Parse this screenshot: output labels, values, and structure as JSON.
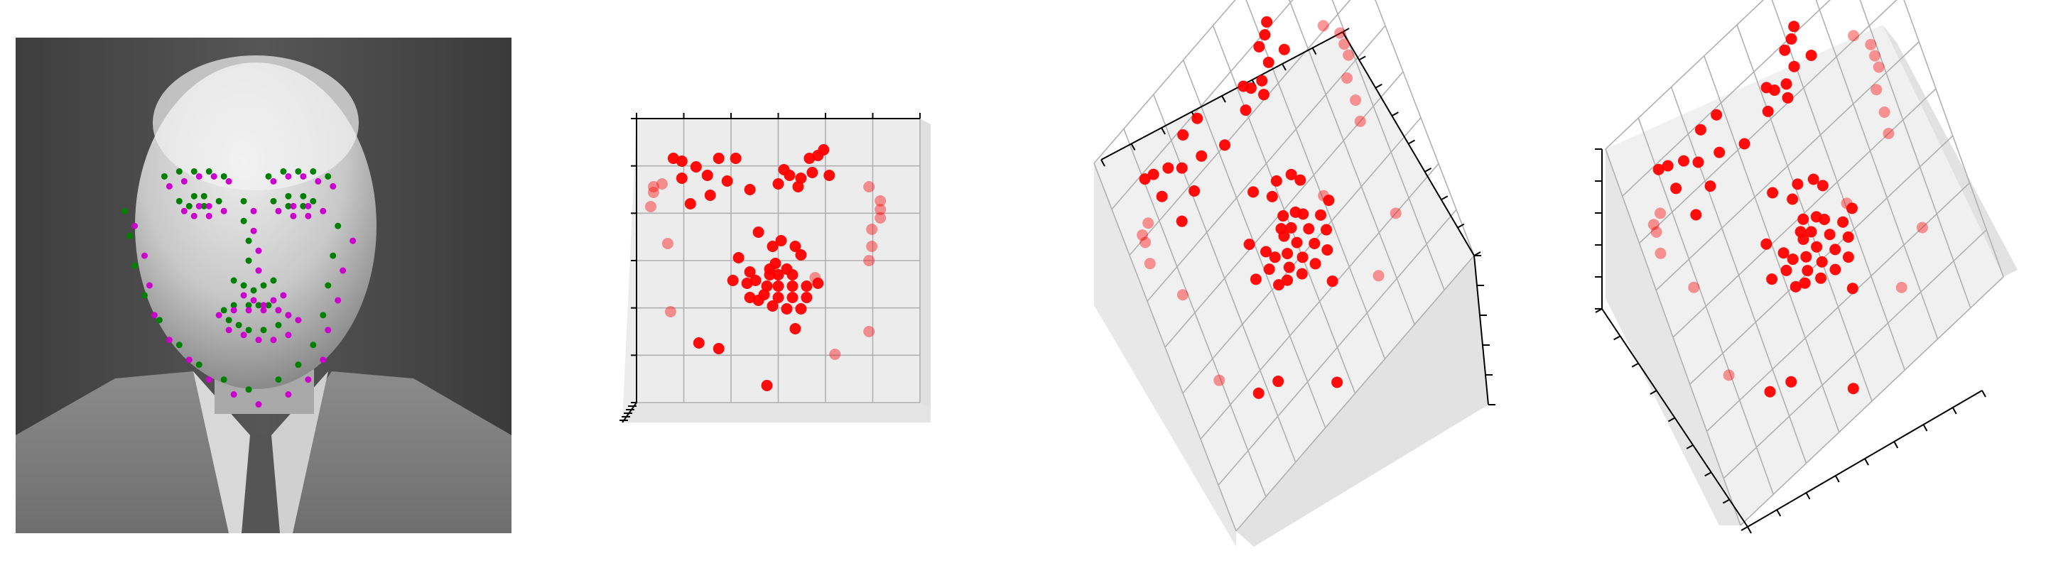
{
  "colors": {
    "point": "#ff0000",
    "landmark_green": "#008000",
    "landmark_magenta": "#cc00cc",
    "pane": "#f2f2f2",
    "pane_side": "#e9e9e9",
    "grid": "#b0b0b0",
    "axis": "#000000"
  },
  "face_image": {
    "icon": "grayscale-face-photo"
  },
  "chart_data": [
    {
      "type": "scatter",
      "view": "face-image-overlay",
      "series": [
        {
          "color": "green",
          "x": [
            0.22,
            0.23,
            0.24,
            0.26,
            0.29,
            0.33,
            0.37,
            0.42,
            0.47,
            0.53,
            0.57,
            0.6,
            0.62,
            0.63,
            0.64,
            0.65,
            0.3,
            0.33,
            0.36,
            0.39,
            0.42,
            0.51,
            0.54,
            0.57,
            0.6,
            0.63,
            0.46,
            0.46,
            0.47,
            0.47,
            0.44,
            0.46,
            0.48,
            0.5,
            0.52,
            0.33,
            0.36,
            0.38,
            0.41,
            0.38,
            0.35,
            0.52,
            0.55,
            0.58,
            0.6,
            0.58,
            0.55,
            0.42,
            0.44,
            0.47,
            0.49,
            0.51,
            0.53,
            0.55,
            0.53,
            0.5,
            0.47,
            0.45,
            0.43
          ],
          "y": [
            0.35,
            0.4,
            0.46,
            0.52,
            0.57,
            0.62,
            0.66,
            0.69,
            0.71,
            0.69,
            0.66,
            0.62,
            0.56,
            0.5,
            0.44,
            0.38,
            0.28,
            0.27,
            0.27,
            0.27,
            0.28,
            0.28,
            0.27,
            0.27,
            0.27,
            0.28,
            0.33,
            0.37,
            0.41,
            0.45,
            0.49,
            0.5,
            0.51,
            0.5,
            0.49,
            0.33,
            0.32,
            0.32,
            0.33,
            0.34,
            0.34,
            0.33,
            0.32,
            0.32,
            0.33,
            0.34,
            0.34,
            0.55,
            0.54,
            0.54,
            0.54,
            0.54,
            0.55,
            0.56,
            0.58,
            0.59,
            0.59,
            0.58,
            0.57
          ]
        },
        {
          "color": "magenta",
          "x": [
            0.24,
            0.26,
            0.27,
            0.28,
            0.31,
            0.35,
            0.39,
            0.44,
            0.49,
            0.55,
            0.59,
            0.62,
            0.63,
            0.65,
            0.66,
            0.68,
            0.31,
            0.34,
            0.37,
            0.4,
            0.43,
            0.52,
            0.55,
            0.58,
            0.61,
            0.64,
            0.48,
            0.48,
            0.49,
            0.49,
            0.46,
            0.48,
            0.5,
            0.52,
            0.54,
            0.34,
            0.37,
            0.39,
            0.42,
            0.39,
            0.36,
            0.53,
            0.56,
            0.59,
            0.62,
            0.59,
            0.56,
            0.41,
            0.44,
            0.47,
            0.5,
            0.53,
            0.55,
            0.57,
            0.55,
            0.52,
            0.49,
            0.46,
            0.43
          ],
          "y": [
            0.38,
            0.44,
            0.5,
            0.56,
            0.61,
            0.65,
            0.69,
            0.72,
            0.74,
            0.72,
            0.69,
            0.65,
            0.59,
            0.53,
            0.47,
            0.41,
            0.3,
            0.29,
            0.28,
            0.28,
            0.29,
            0.29,
            0.28,
            0.28,
            0.29,
            0.3,
            0.35,
            0.39,
            0.43,
            0.47,
            0.52,
            0.53,
            0.54,
            0.53,
            0.52,
            0.35,
            0.34,
            0.34,
            0.35,
            0.36,
            0.36,
            0.35,
            0.34,
            0.34,
            0.35,
            0.36,
            0.36,
            0.56,
            0.55,
            0.55,
            0.55,
            0.55,
            0.56,
            0.57,
            0.6,
            0.61,
            0.61,
            0.6,
            0.59
          ]
        }
      ]
    },
    {
      "type": "scatter",
      "view": "3d-front",
      "x": [
        0.13,
        0.16,
        0.21,
        0.29,
        0.35,
        0.52,
        0.61,
        0.64,
        0.66,
        0.16,
        0.25,
        0.32,
        0.5,
        0.54,
        0.58,
        0.62,
        0.06,
        0.09,
        0.19,
        0.26,
        0.4,
        0.57,
        0.68,
        0.82,
        0.05,
        0.06,
        0.11,
        0.83,
        0.86,
        0.43,
        0.48,
        0.51,
        0.36,
        0.4,
        0.47,
        0.5,
        0.55,
        0.49,
        0.42,
        0.56,
        0.34,
        0.39,
        0.46,
        0.5,
        0.55,
        0.6,
        0.64,
        0.4,
        0.45,
        0.5,
        0.55,
        0.6,
        0.43,
        0.48,
        0.53,
        0.58,
        0.47,
        0.53,
        0.58,
        0.86,
        0.83,
        0.86,
        0.82,
        0.12,
        0.22,
        0.29,
        0.56,
        0.7,
        0.46,
        0.63,
        0.82
      ],
      "y": [
        0.86,
        0.85,
        0.83,
        0.86,
        0.86,
        0.82,
        0.86,
        0.87,
        0.89,
        0.79,
        0.8,
        0.78,
        0.77,
        0.8,
        0.79,
        0.81,
        0.74,
        0.77,
        0.7,
        0.73,
        0.75,
        0.76,
        0.8,
        0.76,
        0.69,
        0.76,
        0.56,
        0.61,
        0.68,
        0.6,
        0.55,
        0.57,
        0.51,
        0.46,
        0.45,
        0.45,
        0.45,
        0.49,
        0.43,
        0.55,
        0.43,
        0.42,
        0.41,
        0.41,
        0.41,
        0.41,
        0.42,
        0.37,
        0.38,
        0.37,
        0.37,
        0.37,
        0.36,
        0.34,
        0.33,
        0.33,
        0.47,
        0.47,
        0.52,
        0.71,
        0.55,
        0.65,
        0.5,
        0.32,
        0.21,
        0.19,
        0.26,
        0.17,
        0.06,
        0.44,
        0.25
      ],
      "z": [
        1,
        1,
        1,
        1,
        1,
        1,
        1,
        1,
        1,
        1,
        1,
        1,
        1,
        1,
        1,
        1,
        0,
        0,
        1,
        1,
        1,
        1,
        1,
        0,
        0,
        0,
        0,
        0,
        0,
        1,
        1,
        1,
        1,
        1,
        1,
        1,
        1,
        1,
        1,
        1,
        1,
        1,
        1,
        1,
        1,
        1,
        1,
        1,
        1,
        1,
        1,
        1,
        1,
        1,
        1,
        1,
        1,
        1,
        1,
        0,
        0,
        0,
        0,
        0,
        1,
        1,
        1,
        0,
        1,
        0,
        0
      ]
    },
    {
      "type": "scatter",
      "view": "3d-rotated",
      "x": [
        0.13,
        0.16,
        0.21,
        0.29,
        0.35,
        0.52,
        0.61,
        0.64,
        0.66,
        0.16,
        0.25,
        0.32,
        0.5,
        0.54,
        0.58,
        0.62,
        0.06,
        0.09,
        0.19,
        0.26,
        0.4,
        0.57,
        0.68,
        0.82,
        0.05,
        0.06,
        0.11,
        0.83,
        0.86,
        0.43,
        0.48,
        0.51,
        0.36,
        0.4,
        0.47,
        0.5,
        0.55,
        0.49,
        0.42,
        0.56,
        0.34,
        0.39,
        0.46,
        0.5,
        0.55,
        0.6,
        0.64,
        0.4,
        0.45,
        0.5,
        0.55,
        0.6,
        0.43,
        0.48,
        0.53,
        0.58,
        0.47,
        0.53,
        0.58,
        0.86,
        0.83,
        0.86,
        0.82,
        0.12,
        0.22,
        0.29,
        0.56,
        0.7,
        0.46,
        0.63,
        0.82
      ],
      "y": [
        0.86,
        0.85,
        0.83,
        0.86,
        0.86,
        0.82,
        0.86,
        0.87,
        0.89,
        0.79,
        0.8,
        0.78,
        0.77,
        0.8,
        0.79,
        0.81,
        0.74,
        0.77,
        0.7,
        0.73,
        0.75,
        0.76,
        0.8,
        0.76,
        0.69,
        0.76,
        0.56,
        0.61,
        0.68,
        0.6,
        0.55,
        0.57,
        0.51,
        0.46,
        0.45,
        0.45,
        0.45,
        0.49,
        0.43,
        0.55,
        0.43,
        0.42,
        0.41,
        0.41,
        0.41,
        0.41,
        0.42,
        0.37,
        0.38,
        0.37,
        0.37,
        0.37,
        0.36,
        0.34,
        0.33,
        0.33,
        0.47,
        0.47,
        0.52,
        0.71,
        0.55,
        0.65,
        0.5,
        0.32,
        0.21,
        0.19,
        0.26,
        0.17,
        0.06,
        0.44,
        0.25
      ],
      "z": [
        1,
        1,
        1,
        1,
        1,
        1,
        1,
        1,
        1,
        1,
        1,
        1,
        1,
        1,
        1,
        1,
        0,
        0,
        1,
        1,
        1,
        1,
        1,
        0,
        0,
        0,
        0,
        0,
        0,
        1,
        1,
        1,
        1,
        1,
        1,
        1,
        1,
        1,
        1,
        1,
        1,
        1,
        1,
        1,
        1,
        1,
        1,
        1,
        1,
        1,
        1,
        1,
        1,
        1,
        1,
        1,
        1,
        1,
        1,
        0,
        0,
        0,
        0,
        0,
        1,
        1,
        1,
        0,
        1,
        0,
        0
      ]
    },
    {
      "type": "scatter",
      "view": "3d-rotated-steep",
      "x": [
        0.13,
        0.16,
        0.21,
        0.29,
        0.35,
        0.52,
        0.61,
        0.64,
        0.66,
        0.16,
        0.25,
        0.32,
        0.5,
        0.54,
        0.58,
        0.62,
        0.06,
        0.09,
        0.19,
        0.26,
        0.4,
        0.57,
        0.68,
        0.82,
        0.05,
        0.06,
        0.11,
        0.83,
        0.86,
        0.43,
        0.48,
        0.51,
        0.36,
        0.4,
        0.47,
        0.5,
        0.55,
        0.49,
        0.42,
        0.56,
        0.34,
        0.39,
        0.46,
        0.5,
        0.55,
        0.6,
        0.64,
        0.4,
        0.45,
        0.5,
        0.55,
        0.6,
        0.43,
        0.48,
        0.53,
        0.58,
        0.47,
        0.53,
        0.58,
        0.86,
        0.83,
        0.86,
        0.82,
        0.12,
        0.22,
        0.29,
        0.56,
        0.7,
        0.46,
        0.63,
        0.82
      ],
      "y": [
        0.86,
        0.85,
        0.83,
        0.86,
        0.86,
        0.82,
        0.86,
        0.87,
        0.89,
        0.79,
        0.8,
        0.78,
        0.77,
        0.8,
        0.79,
        0.81,
        0.74,
        0.77,
        0.7,
        0.73,
        0.75,
        0.76,
        0.8,
        0.76,
        0.69,
        0.76,
        0.56,
        0.61,
        0.68,
        0.6,
        0.55,
        0.57,
        0.51,
        0.46,
        0.45,
        0.45,
        0.45,
        0.49,
        0.43,
        0.55,
        0.43,
        0.42,
        0.41,
        0.41,
        0.41,
        0.41,
        0.42,
        0.37,
        0.38,
        0.37,
        0.37,
        0.37,
        0.36,
        0.34,
        0.33,
        0.33,
        0.47,
        0.47,
        0.52,
        0.71,
        0.55,
        0.65,
        0.5,
        0.32,
        0.21,
        0.19,
        0.26,
        0.17,
        0.06,
        0.44,
        0.25
      ],
      "z": [
        1,
        1,
        1,
        1,
        1,
        1,
        1,
        1,
        1,
        1,
        1,
        1,
        1,
        1,
        1,
        1,
        0,
        0,
        1,
        1,
        1,
        1,
        1,
        0,
        0,
        0,
        0,
        0,
        0,
        1,
        1,
        1,
        1,
        1,
        1,
        1,
        1,
        1,
        1,
        1,
        1,
        1,
        1,
        1,
        1,
        1,
        1,
        1,
        1,
        1,
        1,
        1,
        1,
        1,
        1,
        1,
        1,
        1,
        1,
        0,
        0,
        0,
        0,
        0,
        1,
        1,
        1,
        0,
        1,
        0,
        0
      ]
    }
  ]
}
